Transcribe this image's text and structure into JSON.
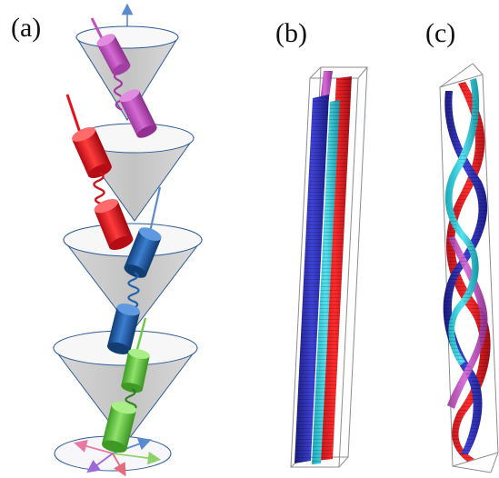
{
  "panels": [
    {
      "label": "(a)"
    },
    {
      "label": "(b)"
    },
    {
      "label": "(c)"
    }
  ],
  "colors": {
    "magenta": "#c04fc0",
    "red": "#e8101c",
    "blue": "#1f5fae",
    "green": "#6cc843",
    "cyan": "#2cc7d6",
    "navy": "#2b2fb0",
    "purple": "#8a3fd1",
    "cone_fill": "#c9c9c9",
    "cone_stroke": "#2f5c99",
    "box_stroke": "#8d8d8d"
  }
}
